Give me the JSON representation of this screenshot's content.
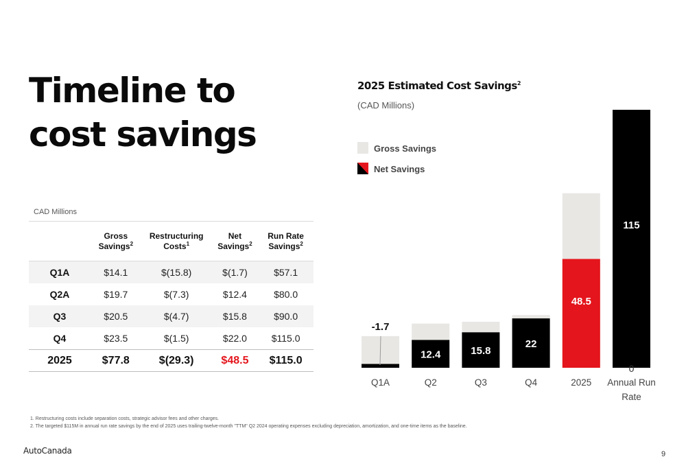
{
  "slide": {
    "title": "Timeline to cost savings",
    "page_number": "9",
    "logo_text": "AutoCanada"
  },
  "table": {
    "caption": "CAD Millions",
    "headers": [
      {
        "text": "Gross Savings",
        "sup": "2"
      },
      {
        "text": "Restructuring Costs",
        "sup": "1"
      },
      {
        "text": "Net Savings",
        "sup": "2"
      },
      {
        "text": "Run Rate Savings",
        "sup": "2"
      }
    ],
    "rows": [
      {
        "label": "Q1A",
        "gross": "$14.1",
        "restructuring": "$(15.8)",
        "net": "$(1.7)",
        "run_rate": "$57.1"
      },
      {
        "label": "Q2A",
        "gross": "$19.7",
        "restructuring": "$(7.3)",
        "net": "$12.4",
        "run_rate": "$80.0"
      },
      {
        "label": "Q3",
        "gross": "$20.5",
        "restructuring": "$(4.7)",
        "net": "$15.8",
        "run_rate": "$90.0"
      },
      {
        "label": "Q4",
        "gross": "$23.5",
        "restructuring": "$(1.5)",
        "net": "$22.0",
        "run_rate": "$115.0"
      }
    ],
    "total": {
      "label": "2025",
      "gross": "$77.8",
      "restructuring": "$(29.3)",
      "net": "$48.5",
      "run_rate": "$115.0"
    }
  },
  "chart_data": {
    "type": "bar",
    "title": "2025 Estimated Cost Savings",
    "title_sup": "2",
    "subtitle": "(CAD Millions)",
    "categories": [
      "Q1A",
      "Q2",
      "Q3",
      "Q4",
      "2025",
      "Annual Run Rate"
    ],
    "series": [
      {
        "name": "Gross Savings",
        "values": [
          14.1,
          19.7,
          20.5,
          23.5,
          77.8,
          null
        ],
        "color": "#e8e7e4"
      },
      {
        "name": "Net Savings",
        "values": [
          -1.7,
          12.4,
          15.8,
          22,
          48.5,
          115
        ],
        "color": "#000000",
        "highlight_color": "#e4151c"
      }
    ],
    "data_labels": [
      "-1.7",
      "12.4",
      "15.8",
      "22",
      "48.5",
      "115"
    ],
    "extra_label": "0",
    "ylim": [
      0,
      115
    ],
    "grid": false,
    "legend_placement": "top-left"
  },
  "footnotes": [
    "1. Restructuring costs include separation costs, strategic advisor fees and other charges.",
    "2. The targeted $115M in annual run rate savings by the end of 2025 uses trailing-twelve-month \"TTM\" Q2 2024 operating expenses excluding depreciation, amortization, and one-time items as the baseline."
  ]
}
